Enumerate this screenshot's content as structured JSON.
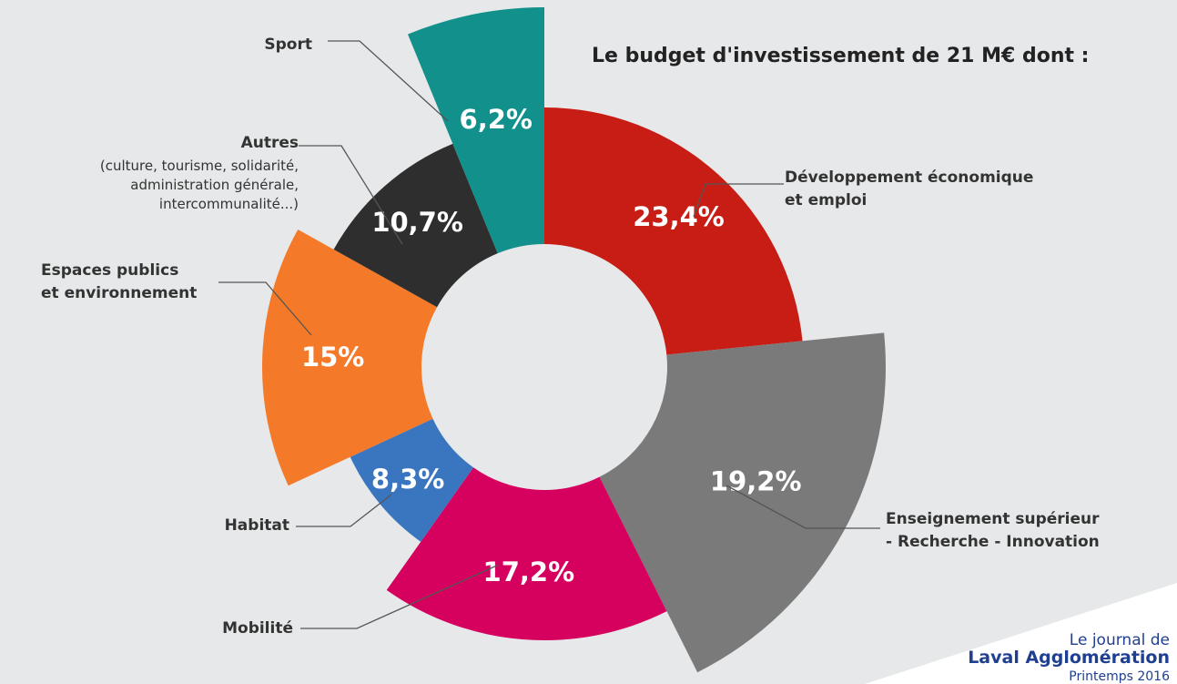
{
  "chart_data": {
    "type": "pie",
    "title": "Le budget d'investissement de 21 M€ dont :",
    "categories": [
      "Développement économique\net emploi",
      "Enseignement supérieur\n- Recherche - Innovation",
      "Mobilité",
      "Habitat",
      "Espaces publics\net environnement",
      "Autres",
      "Sport"
    ],
    "values": [
      23.4,
      19.2,
      17.2,
      8.3,
      15,
      10.7,
      6.2
    ],
    "value_labels": [
      "23,4%",
      "19,2%",
      "17,2%",
      "8,3%",
      "15%",
      "10,7%",
      "6,2%"
    ],
    "colors": [
      "#c81d14",
      "#7a7a7a",
      "#d6005f",
      "#3a76c0",
      "#f47a2a",
      "#2e2e2e",
      "#12908c"
    ],
    "annotations": [
      "(culture, tourisme, solidarité,\nadministration générale,\nintercommunalité...)"
    ],
    "source": [
      "Le journal de",
      "Laval Agglomération",
      "Printemps 2016"
    ]
  }
}
